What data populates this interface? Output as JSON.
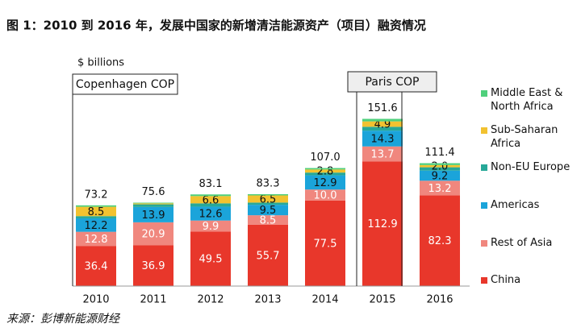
{
  "chart_data": {
    "type": "stacked-bar",
    "title": "图 1：2010 到 2016 年，发展中国家的新增清洁能源资产（项目）融资情况",
    "unit_label": "$ billions",
    "source": "来源：彭博新能源财经",
    "categories": [
      "2010",
      "2011",
      "2012",
      "2013",
      "2014",
      "2015",
      "2016"
    ],
    "ylim": [
      0,
      160
    ],
    "series": [
      {
        "name": "China",
        "color": "#e8372b",
        "values": [
          36.4,
          36.9,
          49.5,
          55.7,
          77.5,
          112.9,
          82.3
        ],
        "value_labels": [
          "36.4",
          "36.9",
          "49.5",
          "55.7",
          "77.5",
          "112.9",
          "82.3"
        ]
      },
      {
        "name": "Rest of Asia",
        "color": "#f0877e",
        "values": [
          12.8,
          20.9,
          9.9,
          8.5,
          10.0,
          13.7,
          13.2
        ],
        "value_labels": [
          "12.8",
          "20.9",
          "9.9",
          "8.5",
          "10.0",
          "13.7",
          "13.2"
        ]
      },
      {
        "name": "Americas",
        "color": "#1ba4da",
        "values": [
          12.2,
          13.9,
          12.6,
          9.5,
          12.9,
          14.3,
          9.2
        ],
        "value_labels": [
          "12.2",
          "13.9",
          "12.6",
          "9.5",
          "12.9",
          "14.3",
          "9.2"
        ]
      },
      {
        "name": "Non-EU Europe",
        "color": "#27a898",
        "values": [
          2.0,
          2.4,
          3.0,
          2.0,
          2.5,
          3.5,
          3.0
        ]
      },
      {
        "name": "Sub-Saharan Africa",
        "color": "#f2c230",
        "values": [
          8.5,
          0.9,
          6.6,
          6.5,
          2.8,
          4.9,
          2.0
        ],
        "value_labels": [
          "8.5",
          null,
          "6.6",
          "6.5",
          "2.8",
          "4.9",
          "2.0"
        ]
      },
      {
        "name": "Middle East & North Africa",
        "color": "#4fd07c",
        "values": [
          1.3,
          0.6,
          1.5,
          1.1,
          1.3,
          2.3,
          1.7
        ]
      }
    ],
    "totals": {
      "values": [
        73.2,
        75.6,
        83.1,
        83.3,
        107.0,
        151.6,
        111.4
      ],
      "value_labels": [
        "73.2",
        "75.6",
        "83.1",
        "83.3",
        "107.0",
        "151.6",
        "111.4"
      ]
    },
    "annotations": [
      {
        "text": "Copenhagen COP",
        "category": "2010"
      },
      {
        "text": "Paris COP",
        "category": "2015"
      }
    ]
  }
}
